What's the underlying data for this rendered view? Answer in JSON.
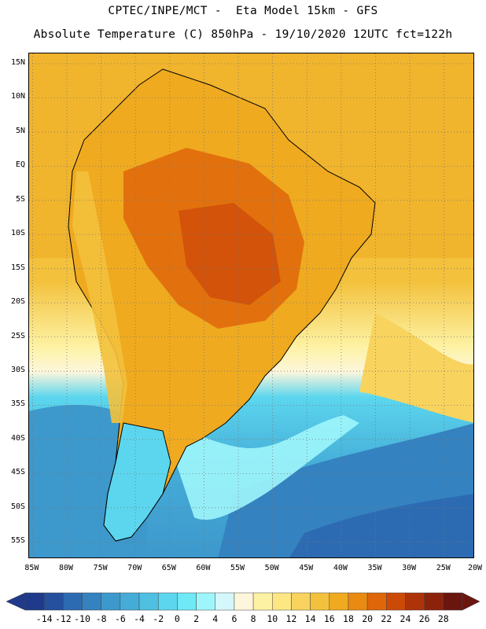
{
  "titles": {
    "line1": "CPTEC/INPE/MCT -  Eta Model 15km - GFS",
    "line2": "Absolute Temperature (C) 850hPa - 19/10/2020 12UTC fct=122h"
  },
  "map": {
    "lat_labels": [
      "15N",
      "10N",
      "5N",
      "EQ",
      "5S",
      "10S",
      "15S",
      "20S",
      "25S",
      "30S",
      "35S",
      "40S",
      "45S",
      "50S",
      "55S"
    ],
    "lon_labels": [
      "85W",
      "80W",
      "75W",
      "70W",
      "65W",
      "60W",
      "55W",
      "50W",
      "45W",
      "40W",
      "35W",
      "30W",
      "25W",
      "20W"
    ],
    "grid": "dotted",
    "extent": {
      "lon": [
        -85.5,
        -20.5
      ],
      "lat": [
        -57.5,
        16.5
      ]
    }
  },
  "colorbar": {
    "labels": [
      "-14",
      "-12",
      "-10",
      "-8",
      "-6",
      "-4",
      "-2",
      "0",
      "2",
      "4",
      "6",
      "8",
      "10",
      "12",
      "14",
      "16",
      "18",
      "20",
      "22",
      "24",
      "26",
      "28"
    ],
    "colors": [
      "#1f3a8a",
      "#25509e",
      "#2c6bb2",
      "#3582c0",
      "#3d98cc",
      "#45acd7",
      "#4fc0e2",
      "#5cd6ee",
      "#6fe9f6",
      "#9ef6fb",
      "#d4f7fb",
      "#fdf6dc",
      "#fdf2a3",
      "#fde783",
      "#f8d35e",
      "#f3c13c",
      "#efaa20",
      "#e98a12",
      "#df670a",
      "#cc4a08",
      "#ae3309",
      "#8d220b",
      "#6b150f"
    ],
    "units": "C"
  }
}
